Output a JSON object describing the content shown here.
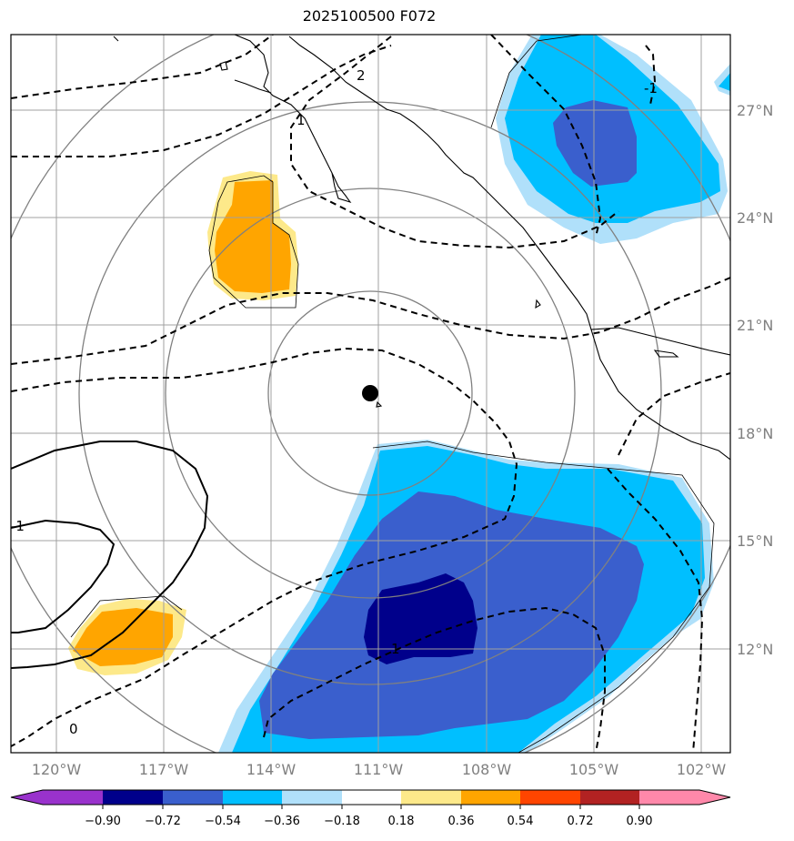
{
  "title": "2025100500 F072",
  "map": {
    "lon_labels": [
      "120°W",
      "117°W",
      "114°W",
      "111°W",
      "108°W",
      "105°W",
      "102°W"
    ],
    "lat_labels": [
      "27°N",
      "24°N",
      "21°N",
      "18°N",
      "15°N",
      "12°N"
    ],
    "contour_labels": [
      "2",
      "-1",
      "1",
      "-1",
      "1",
      "0"
    ],
    "center_marker": "storm-center"
  },
  "colorbar": {
    "ticks": [
      "−0.90",
      "−0.72",
      "−0.54",
      "−0.36",
      "−0.18",
      "0.18",
      "0.36",
      "0.54",
      "0.72",
      "0.90"
    ],
    "colors": {
      "under": "#9932cc",
      "n090": "#00008b",
      "n072": "#3a5fcd",
      "n054": "#00bfff",
      "n036": "#b0e0fa",
      "zero": "#ffffff",
      "p018": "#fde98a",
      "p036": "#ffa500",
      "p054": "#ff4500",
      "p072": "#b22222",
      "over": "#ff88aa"
    }
  }
}
